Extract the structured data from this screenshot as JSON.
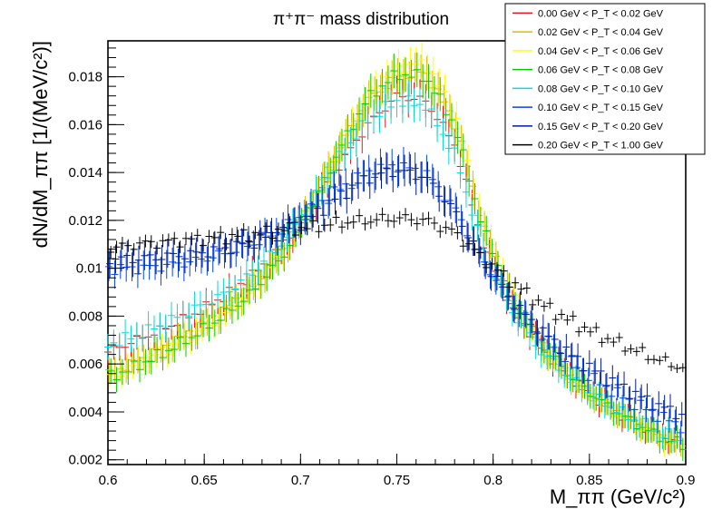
{
  "chart_data": {
    "type": "scatter",
    "title": "π⁺π⁻ mass distribution",
    "xlabel": "M_ππ (GeV/c²)",
    "ylabel": "dN/dM_ππ [1/(MeV/c²)]",
    "xlim": [
      0.6,
      0.9
    ],
    "ylim": [
      0.0018,
      0.0195
    ],
    "x_ticks": [
      "0.6",
      "0.65",
      "0.7",
      "0.75",
      "0.8",
      "0.85",
      "0.9"
    ],
    "y_ticks": [
      "0.002",
      "0.004",
      "0.006",
      "0.008",
      "0.01",
      "0.012",
      "0.014",
      "0.016",
      "0.018"
    ],
    "grid": false,
    "legend_position": "top-right",
    "x": [
      0.6,
      0.615,
      0.63,
      0.645,
      0.66,
      0.675,
      0.69,
      0.705,
      0.72,
      0.735,
      0.75,
      0.765,
      0.78,
      0.795,
      0.81,
      0.825,
      0.84,
      0.855,
      0.87,
      0.885,
      0.9
    ],
    "series": [
      {
        "name": "0.00 GeV < P_T < 0.02 GeV",
        "color": "#e31a1c",
        "values": [
          0.0065,
          0.007,
          0.0075,
          0.0081,
          0.0088,
          0.0097,
          0.0108,
          0.0125,
          0.0143,
          0.016,
          0.0172,
          0.017,
          0.0152,
          0.011,
          0.0083,
          0.0067,
          0.0055,
          0.0045,
          0.0037,
          0.0031,
          0.0026
        ]
      },
      {
        "name": "0.02 GeV < P_T < 0.04 GeV",
        "color": "#e6b800",
        "values": [
          0.0056,
          0.0061,
          0.0067,
          0.0074,
          0.0082,
          0.0092,
          0.0106,
          0.0126,
          0.015,
          0.017,
          0.018,
          0.0182,
          0.0162,
          0.0117,
          0.0087,
          0.0068,
          0.0055,
          0.0045,
          0.0037,
          0.003,
          0.0025
        ]
      },
      {
        "name": "0.04 GeV < P_T < 0.06 GeV",
        "color": "#ffff00",
        "values": [
          0.0055,
          0.006,
          0.0066,
          0.0073,
          0.0081,
          0.0091,
          0.0105,
          0.0125,
          0.015,
          0.0172,
          0.0183,
          0.0186,
          0.0165,
          0.0118,
          0.0088,
          0.0068,
          0.0055,
          0.0045,
          0.0037,
          0.003,
          0.0024
        ]
      },
      {
        "name": "0.06 GeV < P_T < 0.08 GeV",
        "color": "#00cc00",
        "values": [
          0.0054,
          0.0059,
          0.0065,
          0.0072,
          0.008,
          0.009,
          0.0104,
          0.0124,
          0.0149,
          0.0171,
          0.0181,
          0.018,
          0.016,
          0.0116,
          0.0087,
          0.0068,
          0.0055,
          0.0045,
          0.0037,
          0.003,
          0.0026
        ]
      },
      {
        "name": "0.08 GeV < P_T < 0.10 GeV",
        "color": "#00dddd",
        "values": [
          0.0068,
          0.0072,
          0.0077,
          0.0083,
          0.0089,
          0.0098,
          0.011,
          0.0126,
          0.0146,
          0.0162,
          0.017,
          0.0168,
          0.0148,
          0.0108,
          0.0082,
          0.0065,
          0.0054,
          0.0045,
          0.0038,
          0.0032,
          0.0027
        ]
      },
      {
        "name": "0.10 GeV < P_T < 0.15 GeV",
        "color": "#0044ee",
        "values": [
          0.01,
          0.01,
          0.0101,
          0.0103,
          0.0106,
          0.011,
          0.0116,
          0.0124,
          0.0133,
          0.014,
          0.0143,
          0.014,
          0.0125,
          0.0103,
          0.0085,
          0.0072,
          0.0061,
          0.0052,
          0.0045,
          0.0039,
          0.0033
        ]
      },
      {
        "name": "0.15 GeV < P_T < 0.20 GeV",
        "color": "#001c9e",
        "values": [
          0.0104,
          0.0104,
          0.0105,
          0.0106,
          0.0108,
          0.0111,
          0.0115,
          0.0121,
          0.013,
          0.0138,
          0.0141,
          0.0138,
          0.0124,
          0.0103,
          0.0086,
          0.0074,
          0.0064,
          0.0056,
          0.0049,
          0.0043,
          0.0038
        ]
      },
      {
        "name": "0.20 GeV < P_T < 1.00 GeV",
        "color": "#000000",
        "values": [
          0.0108,
          0.011,
          0.0111,
          0.0112,
          0.0113,
          0.0114,
          0.0116,
          0.0117,
          0.0119,
          0.012,
          0.0121,
          0.012,
          0.0115,
          0.0104,
          0.0094,
          0.0085,
          0.0078,
          0.0072,
          0.0067,
          0.0062,
          0.0058
        ]
      }
    ]
  }
}
